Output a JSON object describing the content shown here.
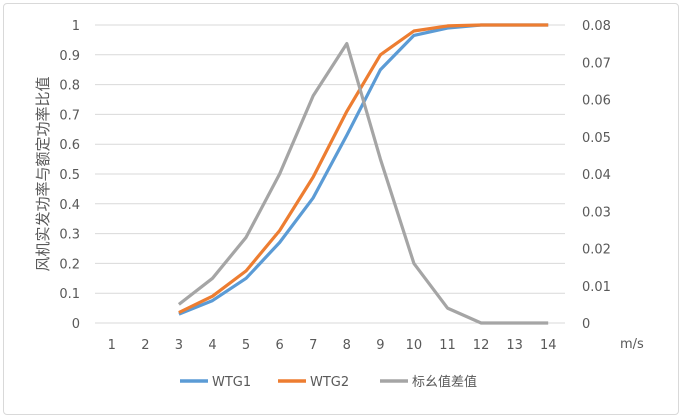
{
  "chart_data": {
    "type": "line",
    "title": "",
    "xlabel": "m/s",
    "ylabel": "风机实发功率与额定功率比值",
    "categories": [
      "1",
      "2",
      "3",
      "4",
      "5",
      "6",
      "7",
      "8",
      "9",
      "10",
      "11",
      "12",
      "13",
      "14"
    ],
    "ylim": [
      0,
      1
    ],
    "y2lim": [
      0,
      0.08
    ],
    "yticks": [
      "0",
      "0.1",
      "0.2",
      "0.3",
      "0.4",
      "0.5",
      "0.6",
      "0.7",
      "0.8",
      "0.9",
      "1"
    ],
    "y2ticks": [
      "0",
      "0.01",
      "0.02",
      "0.03",
      "0.04",
      "0.05",
      "0.06",
      "0.07",
      "0.08"
    ],
    "grid": true,
    "legend_position": "bottom",
    "series": [
      {
        "name": "WTG1",
        "axis": "left",
        "color": "#5b9bd5",
        "values": [
          null,
          null,
          0.03,
          0.075,
          0.15,
          0.27,
          0.42,
          0.63,
          0.85,
          0.965,
          0.99,
          1,
          1,
          1
        ]
      },
      {
        "name": "WTG2",
        "axis": "left",
        "color": "#ed7d31",
        "values": [
          null,
          null,
          0.035,
          0.09,
          0.175,
          0.31,
          0.49,
          0.71,
          0.9,
          0.98,
          0.997,
          1,
          1,
          1
        ]
      },
      {
        "name": "标幺值差值",
        "axis": "right",
        "color": "#a5a5a5",
        "values": [
          null,
          null,
          0.005,
          0.012,
          0.023,
          0.04,
          0.061,
          0.075,
          0.044,
          0.016,
          0.004,
          0,
          0,
          0
        ]
      }
    ]
  }
}
